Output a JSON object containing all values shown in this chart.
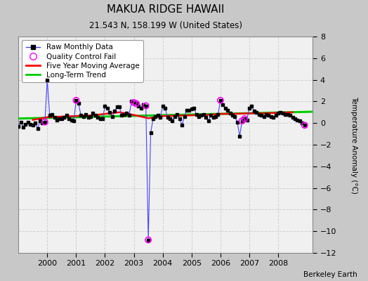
{
  "title": "MAKUA RIDGE HAWAII",
  "subtitle": "21.543 N, 158.199 W (United States)",
  "ylabel": "Temperature Anomaly (°C)",
  "credit": "Berkeley Earth",
  "ylim": [
    -12,
    8
  ],
  "yticks": [
    -12,
    -10,
    -8,
    -6,
    -4,
    -2,
    0,
    2,
    4,
    6,
    8
  ],
  "xlim": [
    1999.0,
    2009.2
  ],
  "xticks": [
    2000,
    2001,
    2002,
    2003,
    2004,
    2005,
    2006,
    2007,
    2008
  ],
  "fig_bg_color": "#c8c8c8",
  "plot_bg_color": "#f0f0f0",
  "grid_color": "#d0d0d0",
  "raw_line_color": "#4444ff",
  "raw_marker_color": "black",
  "qc_color": "magenta",
  "moving_avg_color": "red",
  "trend_color": "#00cc00",
  "raw_data_x": [
    1999.0,
    1999.083,
    1999.167,
    1999.25,
    1999.333,
    1999.417,
    1999.5,
    1999.583,
    1999.667,
    1999.75,
    1999.833,
    1999.917,
    2000.0,
    2000.083,
    2000.167,
    2000.25,
    2000.333,
    2000.417,
    2000.5,
    2000.583,
    2000.667,
    2000.75,
    2000.833,
    2000.917,
    2001.0,
    2001.083,
    2001.167,
    2001.25,
    2001.333,
    2001.417,
    2001.5,
    2001.583,
    2001.667,
    2001.75,
    2001.833,
    2001.917,
    2002.0,
    2002.083,
    2002.167,
    2002.25,
    2002.333,
    2002.417,
    2002.5,
    2002.583,
    2002.667,
    2002.75,
    2002.833,
    2002.917,
    2003.0,
    2003.083,
    2003.167,
    2003.25,
    2003.333,
    2003.417,
    2003.5,
    2003.583,
    2003.667,
    2003.75,
    2003.833,
    2003.917,
    2004.0,
    2004.083,
    2004.167,
    2004.25,
    2004.333,
    2004.417,
    2004.5,
    2004.583,
    2004.667,
    2004.75,
    2004.833,
    2004.917,
    2005.0,
    2005.083,
    2005.167,
    2005.25,
    2005.333,
    2005.417,
    2005.5,
    2005.583,
    2005.667,
    2005.75,
    2005.833,
    2005.917,
    2006.0,
    2006.083,
    2006.167,
    2006.25,
    2006.333,
    2006.417,
    2006.5,
    2006.583,
    2006.667,
    2006.75,
    2006.833,
    2006.917,
    2007.0,
    2007.083,
    2007.167,
    2007.25,
    2007.333,
    2007.417,
    2007.5,
    2007.583,
    2007.667,
    2007.75,
    2007.833,
    2007.917,
    2008.0,
    2008.083,
    2008.167,
    2008.25,
    2008.333,
    2008.417,
    2008.5,
    2008.583,
    2008.667,
    2008.75,
    2008.833,
    2008.917
  ],
  "raw_data_y": [
    -0.3,
    0.1,
    -0.4,
    -0.1,
    0.1,
    -0.1,
    -0.2,
    0.0,
    -0.5,
    0.2,
    0.0,
    0.1,
    4.0,
    0.7,
    0.8,
    0.5,
    0.3,
    0.4,
    0.4,
    0.5,
    0.7,
    0.4,
    0.3,
    0.2,
    2.1,
    1.8,
    0.7,
    0.6,
    0.8,
    0.5,
    0.6,
    0.9,
    0.7,
    0.5,
    0.4,
    0.4,
    1.6,
    1.4,
    1.0,
    0.6,
    1.1,
    1.5,
    1.5,
    0.7,
    0.8,
    0.9,
    0.7,
    2.0,
    1.9,
    1.8,
    1.6,
    1.4,
    1.7,
    1.6,
    -10.8,
    -0.9,
    0.4,
    0.6,
    0.7,
    0.5,
    1.6,
    1.4,
    0.5,
    0.4,
    0.2,
    0.6,
    0.8,
    0.4,
    -0.2,
    0.6,
    1.2,
    1.2,
    1.3,
    1.4,
    0.8,
    0.6,
    0.7,
    0.8,
    0.5,
    0.2,
    0.7,
    0.5,
    0.6,
    0.8,
    2.1,
    1.7,
    1.4,
    1.2,
    0.9,
    0.7,
    0.6,
    0.1,
    -1.2,
    0.2,
    0.4,
    0.3,
    1.4,
    1.6,
    1.1,
    1.0,
    0.8,
    0.7,
    0.6,
    0.8,
    0.7,
    0.6,
    0.5,
    0.7,
    0.9,
    1.0,
    0.9,
    0.8,
    0.8,
    0.7,
    0.5,
    0.4,
    0.3,
    0.2,
    0.0,
    -0.2
  ],
  "qc_fail_x": [
    1999.917,
    2001.0,
    2003.0,
    2003.083,
    2003.417,
    2003.5,
    2006.0,
    2006.75,
    2006.833,
    2008.917
  ],
  "qc_fail_y": [
    0.1,
    2.1,
    1.9,
    1.8,
    1.6,
    -10.8,
    2.1,
    0.2,
    0.4,
    -0.2
  ],
  "moving_avg_x": [
    1999.5,
    2000.0,
    2000.5,
    2001.0,
    2001.5,
    2002.0,
    2002.5,
    2003.0,
    2003.5,
    2004.0,
    2004.5,
    2005.0,
    2005.5,
    2006.0,
    2006.5,
    2007.0,
    2007.5,
    2008.0,
    2008.5
  ],
  "moving_avg_y": [
    0.3,
    0.55,
    0.6,
    0.65,
    0.7,
    0.85,
    1.0,
    0.75,
    0.45,
    0.65,
    0.68,
    0.72,
    0.75,
    0.85,
    0.85,
    0.9,
    0.9,
    0.95,
    1.0
  ],
  "trend_x": [
    1999.0,
    2009.2
  ],
  "trend_y": [
    0.42,
    1.05
  ]
}
